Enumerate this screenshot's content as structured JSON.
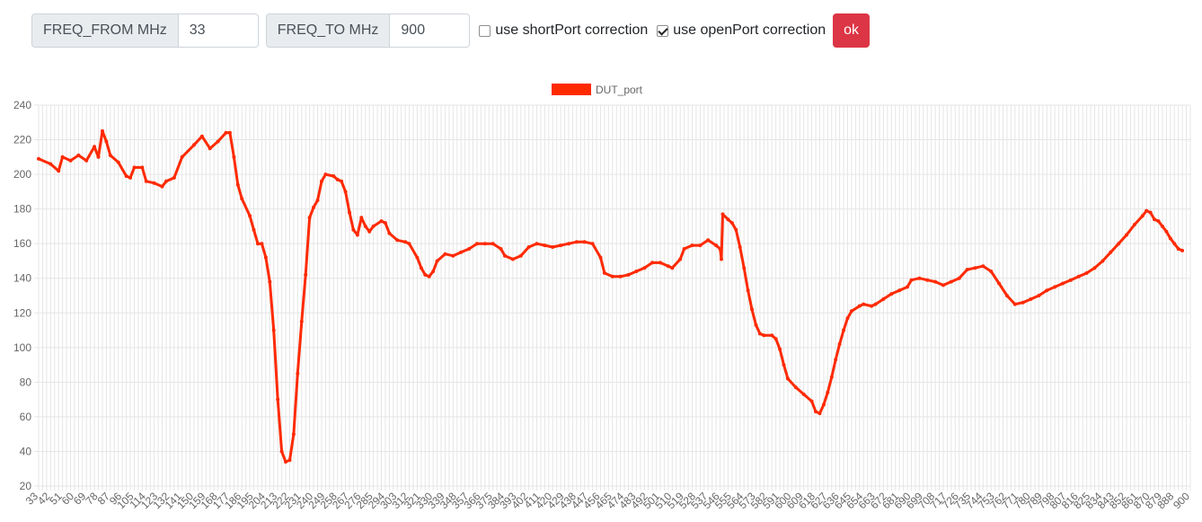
{
  "controls": {
    "freq_from_label": "FREQ_FROM MHz",
    "freq_from_value": "33",
    "freq_to_label": "FREQ_TO MHz",
    "freq_to_value": "900",
    "short_label": "use shortPort correction",
    "short_checked": false,
    "open_label": "use openPort correction",
    "open_checked": true,
    "ok_label": "ok"
  },
  "colors": {
    "series": "#ff2a00",
    "button": "#dc3545",
    "grid": "#e5e5e5"
  },
  "chart_data": {
    "type": "line",
    "title": "",
    "xlabel": "",
    "ylabel": "",
    "x_start": 33,
    "x_end": 900,
    "x_step": 3,
    "x_tick_labels": [
      "33",
      "42",
      "51",
      "60",
      "69",
      "78",
      "87",
      "96",
      "105",
      "114",
      "123",
      "132",
      "141",
      "150",
      "159",
      "168",
      "177",
      "186",
      "195",
      "204",
      "213",
      "222",
      "231",
      "240",
      "249",
      "258",
      "267",
      "276",
      "285",
      "294",
      "303",
      "312",
      "321",
      "330",
      "339",
      "348",
      "357",
      "366",
      "375",
      "384",
      "393",
      "402",
      "411",
      "420",
      "429",
      "438",
      "447",
      "456",
      "465",
      "474",
      "483",
      "492",
      "501",
      "510",
      "519",
      "528",
      "537",
      "546",
      "555",
      "564",
      "573",
      "582",
      "591",
      "600",
      "609",
      "618",
      "627",
      "636",
      "645",
      "654",
      "663",
      "672",
      "681",
      "690",
      "699",
      "708",
      "717",
      "726",
      "735",
      "744",
      "753",
      "762",
      "771",
      "780",
      "789",
      "798",
      "807",
      "816",
      "825",
      "834",
      "843",
      "852",
      "861",
      "870",
      "879",
      "888",
      "900"
    ],
    "y_ticks": [
      20,
      40,
      60,
      80,
      100,
      120,
      140,
      160,
      180,
      200,
      220,
      240
    ],
    "ylim": [
      20,
      240
    ],
    "legend_position": "top",
    "grid": true,
    "series": [
      {
        "name": "DUT_port",
        "points": [
          [
            33,
            209
          ],
          [
            42,
            206
          ],
          [
            48,
            202
          ],
          [
            51,
            210
          ],
          [
            57,
            208
          ],
          [
            63,
            211
          ],
          [
            69,
            208
          ],
          [
            75,
            216
          ],
          [
            78,
            210
          ],
          [
            81,
            225
          ],
          [
            84,
            219
          ],
          [
            87,
            211
          ],
          [
            93,
            207
          ],
          [
            99,
            199
          ],
          [
            102,
            198
          ],
          [
            105,
            204
          ],
          [
            111,
            204
          ],
          [
            114,
            196
          ],
          [
            120,
            195
          ],
          [
            126,
            193
          ],
          [
            129,
            196
          ],
          [
            135,
            198
          ],
          [
            141,
            210
          ],
          [
            150,
            217
          ],
          [
            156,
            222
          ],
          [
            162,
            215
          ],
          [
            168,
            219
          ],
          [
            174,
            224
          ],
          [
            177,
            224
          ],
          [
            180,
            210
          ],
          [
            183,
            194
          ],
          [
            186,
            186
          ],
          [
            192,
            176
          ],
          [
            195,
            168
          ],
          [
            198,
            160
          ],
          [
            201,
            160
          ],
          [
            204,
            152
          ],
          [
            207,
            138
          ],
          [
            210,
            110
          ],
          [
            213,
            70
          ],
          [
            216,
            40
          ],
          [
            219,
            34
          ],
          [
            222,
            35
          ],
          [
            225,
            50
          ],
          [
            228,
            85
          ],
          [
            231,
            115
          ],
          [
            234,
            142
          ],
          [
            237,
            175
          ],
          [
            240,
            181
          ],
          [
            243,
            185
          ],
          [
            246,
            196
          ],
          [
            249,
            200
          ],
          [
            255,
            199
          ],
          [
            258,
            197
          ],
          [
            261,
            196
          ],
          [
            264,
            190
          ],
          [
            267,
            178
          ],
          [
            270,
            168
          ],
          [
            273,
            165
          ],
          [
            276,
            175
          ],
          [
            279,
            170
          ],
          [
            282,
            167
          ],
          [
            285,
            170
          ],
          [
            291,
            173
          ],
          [
            294,
            172
          ],
          [
            297,
            166
          ],
          [
            303,
            162
          ],
          [
            309,
            161
          ],
          [
            312,
            160
          ],
          [
            318,
            152
          ],
          [
            321,
            146
          ],
          [
            324,
            142
          ],
          [
            327,
            141
          ],
          [
            330,
            144
          ],
          [
            333,
            150
          ],
          [
            339,
            154
          ],
          [
            345,
            153
          ],
          [
            351,
            155
          ],
          [
            357,
            157
          ],
          [
            363,
            160
          ],
          [
            369,
            160
          ],
          [
            375,
            160
          ],
          [
            381,
            157
          ],
          [
            384,
            153
          ],
          [
            390,
            151
          ],
          [
            396,
            153
          ],
          [
            402,
            158
          ],
          [
            408,
            160
          ],
          [
            414,
            159
          ],
          [
            420,
            158
          ],
          [
            426,
            159
          ],
          [
            432,
            160
          ],
          [
            438,
            161
          ],
          [
            444,
            161
          ],
          [
            450,
            160
          ],
          [
            456,
            152
          ],
          [
            459,
            143
          ],
          [
            465,
            141
          ],
          [
            471,
            141
          ],
          [
            477,
            142
          ],
          [
            483,
            144
          ],
          [
            489,
            146
          ],
          [
            495,
            149
          ],
          [
            501,
            149
          ],
          [
            507,
            147
          ],
          [
            510,
            146
          ],
          [
            516,
            151
          ],
          [
            519,
            157
          ],
          [
            525,
            159
          ],
          [
            531,
            159
          ],
          [
            537,
            162
          ],
          [
            543,
            159
          ],
          [
            546,
            157
          ],
          [
            547,
            151
          ],
          [
            548,
            177
          ],
          [
            552,
            174
          ],
          [
            555,
            172
          ],
          [
            558,
            168
          ],
          [
            561,
            158
          ],
          [
            564,
            146
          ],
          [
            567,
            133
          ],
          [
            570,
            122
          ],
          [
            573,
            113
          ],
          [
            576,
            108
          ],
          [
            579,
            107
          ],
          [
            585,
            107
          ],
          [
            588,
            105
          ],
          [
            591,
            99
          ],
          [
            594,
            90
          ],
          [
            597,
            82
          ],
          [
            603,
            77
          ],
          [
            609,
            73
          ],
          [
            615,
            69
          ],
          [
            618,
            63
          ],
          [
            621,
            62
          ],
          [
            624,
            67
          ],
          [
            627,
            74
          ],
          [
            630,
            83
          ],
          [
            633,
            93
          ],
          [
            636,
            102
          ],
          [
            639,
            110
          ],
          [
            642,
            117
          ],
          [
            645,
            121
          ],
          [
            651,
            124
          ],
          [
            654,
            125
          ],
          [
            660,
            124
          ],
          [
            663,
            125
          ],
          [
            669,
            128
          ],
          [
            675,
            131
          ],
          [
            681,
            133
          ],
          [
            687,
            135
          ],
          [
            690,
            139
          ],
          [
            696,
            140
          ],
          [
            702,
            139
          ],
          [
            708,
            138
          ],
          [
            714,
            136
          ],
          [
            720,
            138
          ],
          [
            726,
            140
          ],
          [
            732,
            145
          ],
          [
            738,
            146
          ],
          [
            744,
            147
          ],
          [
            750,
            144
          ],
          [
            756,
            137
          ],
          [
            762,
            130
          ],
          [
            768,
            125
          ],
          [
            774,
            126
          ],
          [
            780,
            128
          ],
          [
            786,
            130
          ],
          [
            792,
            133
          ],
          [
            798,
            135
          ],
          [
            804,
            137
          ],
          [
            810,
            139
          ],
          [
            816,
            141
          ],
          [
            822,
            143
          ],
          [
            828,
            146
          ],
          [
            834,
            150
          ],
          [
            840,
            155
          ],
          [
            846,
            160
          ],
          [
            852,
            165
          ],
          [
            858,
            171
          ],
          [
            864,
            176
          ],
          [
            867,
            179
          ],
          [
            870,
            178
          ],
          [
            873,
            174
          ],
          [
            876,
            173
          ],
          [
            879,
            170
          ],
          [
            882,
            167
          ],
          [
            885,
            163
          ],
          [
            888,
            160
          ],
          [
            891,
            157
          ],
          [
            894,
            156
          ]
        ]
      }
    ]
  }
}
